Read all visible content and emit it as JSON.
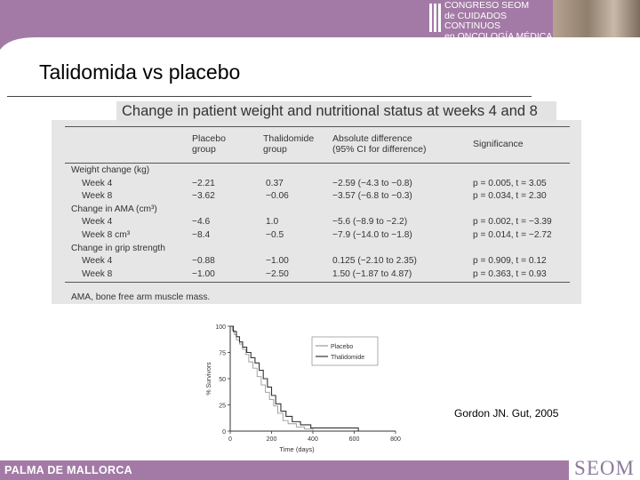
{
  "header": {
    "logo_lines": [
      "CONGRESO SEOM",
      "de CUIDADOS CONTINUOS",
      "en ONCOLOGÍA MÉDICA"
    ],
    "band_color": "#a37aa5"
  },
  "slide": {
    "title": "Talidomida vs placebo",
    "credit": "Gordon JN. Gut, 2005"
  },
  "table": {
    "caption": "Change in patient weight and nutritional status at weeks 4 and 8",
    "headers": {
      "placebo": [
        "Placebo",
        "group"
      ],
      "thalidomide": [
        "Thalidomide",
        "group"
      ],
      "difference": [
        "Absolute difference",
        "(95% CI for difference)"
      ],
      "significance": "Significance"
    },
    "rows": [
      {
        "label": "Weight change (kg)",
        "indent": false,
        "placebo": "",
        "thalidomide": "",
        "difference": "",
        "significance": ""
      },
      {
        "label": "Week 4",
        "indent": true,
        "placebo": "−2.21",
        "thalidomide": "0.37",
        "difference": "−2.59 (−4.3 to −0.8)",
        "significance": "p = 0.005, t = 3.05"
      },
      {
        "label": "Week 8",
        "indent": true,
        "placebo": "−3.62",
        "thalidomide": "−0.06",
        "difference": "−3.57 (−6.8 to −0.3)",
        "significance": "p = 0.034, t = 2.30"
      },
      {
        "label": "Change in AMA (cm³)",
        "indent": false,
        "placebo": "",
        "thalidomide": "",
        "difference": "",
        "significance": ""
      },
      {
        "label": "Week 4",
        "indent": true,
        "placebo": "−4.6",
        "thalidomide": "1.0",
        "difference": "−5.6 (−8.9 to −2.2)",
        "significance": "p = 0.002, t = −3.39"
      },
      {
        "label": "Week 8 cm³",
        "indent": true,
        "placebo": "−8.4",
        "thalidomide": "−0.5",
        "difference": "−7.9 (−14.0 to −1.8)",
        "significance": "p = 0.014, t = −2.72"
      },
      {
        "label": "Change in grip strength",
        "indent": false,
        "placebo": "",
        "thalidomide": "",
        "difference": "",
        "significance": ""
      },
      {
        "label": "Week 4",
        "indent": true,
        "placebo": "−0.88",
        "thalidomide": "−1.00",
        "difference": "0.125 (−2.10 to 2.35)",
        "significance": "p = 0.909, t = 0.12"
      },
      {
        "label": "Week 8",
        "indent": true,
        "placebo": "−1.00",
        "thalidomide": "−2.50",
        "difference": "1.50 (−1.87 to 4.87)",
        "significance": "p = 0.363, t = 0.93"
      }
    ],
    "footnote": "AMA, bone free arm muscle mass."
  },
  "survival_chart": {
    "ylabel": "% Survivors",
    "xlabel": "Time (days)",
    "y_ticks": [
      "0",
      "25",
      "50",
      "75",
      "100"
    ],
    "x_ticks": [
      "0",
      "200",
      "400",
      "600",
      "800"
    ],
    "legend": [
      "Placebo",
      "Thalidomide"
    ],
    "series": [
      {
        "name": "Placebo",
        "color": "#9a9a9a",
        "points": [
          [
            0,
            100
          ],
          [
            10,
            96
          ],
          [
            20,
            92
          ],
          [
            30,
            87
          ],
          [
            45,
            83
          ],
          [
            60,
            78
          ],
          [
            75,
            73
          ],
          [
            90,
            66
          ],
          [
            110,
            60
          ],
          [
            130,
            52
          ],
          [
            150,
            44
          ],
          [
            170,
            37
          ],
          [
            190,
            30
          ],
          [
            210,
            24
          ],
          [
            230,
            17
          ],
          [
            255,
            10
          ],
          [
            280,
            7
          ],
          [
            320,
            4
          ],
          [
            360,
            2
          ],
          [
            400,
            0
          ]
        ]
      },
      {
        "name": "Thalidomide",
        "color": "#333333",
        "points": [
          [
            0,
            100
          ],
          [
            15,
            95
          ],
          [
            30,
            90
          ],
          [
            45,
            85
          ],
          [
            60,
            80
          ],
          [
            80,
            75
          ],
          [
            100,
            70
          ],
          [
            120,
            65
          ],
          [
            140,
            58
          ],
          [
            160,
            50
          ],
          [
            180,
            42
          ],
          [
            200,
            34
          ],
          [
            220,
            26
          ],
          [
            245,
            19
          ],
          [
            270,
            14
          ],
          [
            300,
            9
          ],
          [
            340,
            6
          ],
          [
            390,
            3
          ],
          [
            450,
            3
          ],
          [
            560,
            3
          ],
          [
            620,
            0
          ]
        ]
      }
    ]
  },
  "footer": {
    "location": "PALMA DE MALLORCA",
    "logo": "SEOM"
  }
}
